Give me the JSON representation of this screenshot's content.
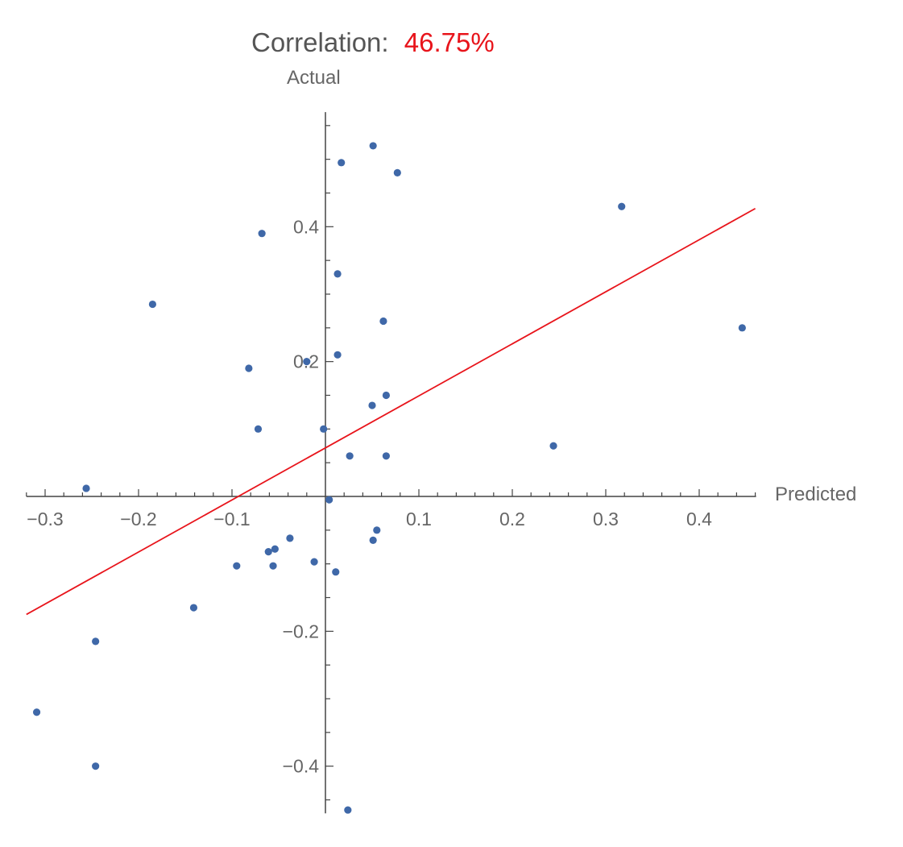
{
  "header": {
    "label": "Correlation:",
    "value": "46.75%",
    "label_color": "#555555",
    "value_color": "#e8141b"
  },
  "chart_data": {
    "type": "scatter",
    "xlabel": "Predicted",
    "ylabel": "Actual",
    "xlim": [
      -0.32,
      0.46
    ],
    "ylim": [
      -0.47,
      0.57
    ],
    "x_ticks": [
      {
        "value": -0.3,
        "label": "−0.3"
      },
      {
        "value": -0.2,
        "label": "−0.2"
      },
      {
        "value": -0.1,
        "label": "−0.1"
      },
      {
        "value": 0.1,
        "label": "0.1"
      },
      {
        "value": 0.2,
        "label": "0.2"
      },
      {
        "value": 0.3,
        "label": "0.3"
      },
      {
        "value": 0.4,
        "label": "0.4"
      }
    ],
    "y_ticks": [
      {
        "value": 0.4,
        "label": "0.4"
      },
      {
        "value": 0.2,
        "label": "0.2"
      },
      {
        "value": -0.2,
        "label": "−0.2"
      },
      {
        "value": -0.4,
        "label": "−0.4"
      }
    ],
    "x_minor_step": 0.02,
    "y_minor_step": 0.05,
    "point_color": "#3f68a8",
    "line_color": "#e8141b",
    "points": [
      [
        0.051,
        0.52
      ],
      [
        0.017,
        0.495
      ],
      [
        0.077,
        0.48
      ],
      [
        0.317,
        0.43
      ],
      [
        -0.068,
        0.39
      ],
      [
        0.013,
        0.33
      ],
      [
        -0.185,
        0.285
      ],
      [
        0.062,
        0.26
      ],
      [
        0.446,
        0.25
      ],
      [
        0.013,
        0.21
      ],
      [
        -0.02,
        0.2
      ],
      [
        -0.082,
        0.19
      ],
      [
        0.065,
        0.15
      ],
      [
        0.05,
        0.135
      ],
      [
        -0.072,
        0.1
      ],
      [
        -0.002,
        0.1
      ],
      [
        0.026,
        0.06
      ],
      [
        0.065,
        0.06
      ],
      [
        0.244,
        0.075
      ],
      [
        -0.256,
        0.012
      ],
      [
        0.004,
        -0.005
      ],
      [
        0.055,
        -0.05
      ],
      [
        0.051,
        -0.065
      ],
      [
        -0.038,
        -0.062
      ],
      [
        -0.054,
        -0.078
      ],
      [
        -0.061,
        -0.082
      ],
      [
        -0.012,
        -0.097
      ],
      [
        -0.095,
        -0.103
      ],
      [
        -0.056,
        -0.103
      ],
      [
        0.011,
        -0.112
      ],
      [
        -0.141,
        -0.165
      ],
      [
        -0.246,
        -0.215
      ],
      [
        -0.309,
        -0.32
      ],
      [
        -0.246,
        -0.4
      ],
      [
        0.024,
        -0.465
      ]
    ],
    "fit_line": [
      {
        "x": -0.32,
        "y": -0.175
      },
      {
        "x": 0.46,
        "y": 0.427
      }
    ]
  }
}
